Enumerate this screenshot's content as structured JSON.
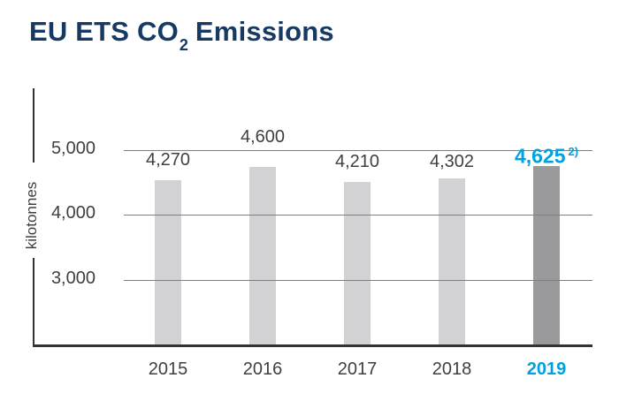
{
  "title": {
    "text_pre_sub": "EU ETS CO",
    "subscript": "2",
    "text_post_sub": " Emissions"
  },
  "colors": {
    "title_navy": "#173a64",
    "accent_cyan": "#00a0e1",
    "bar_default": "#d2d2d4",
    "bar_highlight": "#9a9a9c",
    "gridline_gray": "#7f7f7f",
    "axis_dark": "#333333",
    "label_text": "#3f3f3f",
    "background": "#ffffff"
  },
  "chart_data": {
    "type": "bar",
    "title": "EU ETS CO2 Emissions",
    "categories": [
      "2015",
      "2016",
      "2017",
      "2018",
      "2019"
    ],
    "values": [
      4270,
      4600,
      4210,
      4302,
      4625
    ],
    "value_labels": [
      "4,270",
      "4,600",
      "4,210",
      "4,302",
      "4,625"
    ],
    "highlight_category": "2019",
    "highlight_index": 4,
    "footnote_marker": "2)",
    "xlabel": "",
    "ylabel": "kilotonnes",
    "yticks": [
      5000,
      4000,
      3000
    ],
    "ytick_labels": [
      "5,000",
      "4,000",
      "3,000"
    ],
    "ylim": [
      2000,
      5400
    ],
    "grid": true,
    "legend": false
  }
}
